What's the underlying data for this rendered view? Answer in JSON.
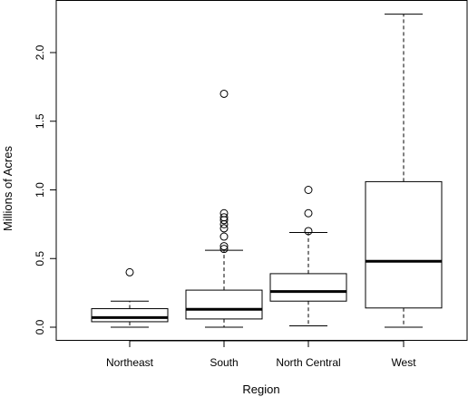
{
  "chart_data": {
    "type": "boxplot",
    "xlabel": "Region",
    "ylabel": "Millions of Acres",
    "ylim": [
      -0.1,
      2.35
    ],
    "yticks": [
      0.0,
      0.5,
      1.0,
      1.5,
      2.0
    ],
    "ytick_labels": [
      "0.0",
      "0.5",
      "1.0",
      "1.5",
      "2.0"
    ],
    "grid": false,
    "categories": [
      "Northeast",
      "South",
      "North Central",
      "West"
    ],
    "boxes": [
      {
        "name": "Northeast",
        "whisker_low": 0.0,
        "q1": 0.04,
        "median": 0.07,
        "q3": 0.135,
        "whisker_high": 0.19,
        "outliers": [
          0.4
        ]
      },
      {
        "name": "South",
        "whisker_low": 0.0,
        "q1": 0.06,
        "median": 0.13,
        "q3": 0.27,
        "whisker_high": 0.56,
        "outliers": [
          0.57,
          0.59,
          0.66,
          0.72,
          0.75,
          0.78,
          0.8,
          0.83,
          1.7
        ]
      },
      {
        "name": "North Central",
        "whisker_low": 0.01,
        "q1": 0.19,
        "median": 0.26,
        "q3": 0.39,
        "whisker_high": 0.69,
        "outliers": [
          0.7,
          0.83,
          1.0
        ]
      },
      {
        "name": "West",
        "whisker_low": 0.0,
        "q1": 0.14,
        "median": 0.48,
        "q3": 1.06,
        "whisker_high": 2.28,
        "outliers": []
      }
    ]
  }
}
